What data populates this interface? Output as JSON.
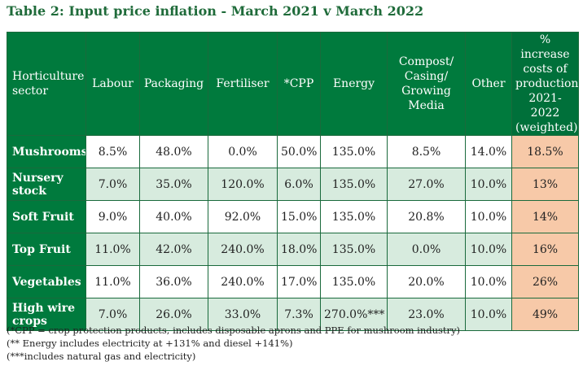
{
  "title": "Table 2: Input price inflation - March 2021 v March 2022",
  "columns": [
    {
      "label": "Horticulture sector"
    },
    {
      "label": "Labour"
    },
    {
      "label": "Packaging"
    },
    {
      "label": "Fertiliser"
    },
    {
      "label": "*CPP"
    },
    {
      "label": "Energy"
    },
    {
      "label": "Compost/ Casing/ Growing Media"
    },
    {
      "label": "Other"
    },
    {
      "label": "% increase costs of production 2021-2022 (weighted)"
    }
  ],
  "rows": [
    {
      "sector": "Mushrooms",
      "cells": [
        "8.5%",
        "48.0%",
        "0.0%",
        "50.0%",
        "135.0%",
        "8.5%",
        "14.0%",
        "18.5%"
      ]
    },
    {
      "sector": "Nursery stock",
      "cells": [
        "7.0%",
        "35.0%",
        "120.0%",
        "6.0%",
        "135.0%",
        "27.0%",
        "10.0%",
        "13%"
      ]
    },
    {
      "sector": "Soft Fruit",
      "cells": [
        "9.0%",
        "40.0%",
        "92.0%",
        "15.0%",
        "135.0%",
        "20.8%",
        "10.0%",
        "14%"
      ]
    },
    {
      "sector": "Top Fruit",
      "cells": [
        "11.0%",
        "42.0%",
        "240.0%",
        "18.0%",
        "135.0%",
        "0.0%",
        "10.0%",
        "16%"
      ]
    },
    {
      "sector": "Vegetables",
      "cells": [
        "11.0%",
        "36.0%",
        "240.0%",
        "17.0%",
        "135.0%",
        "20.0%",
        "10.0%",
        "26%"
      ]
    },
    {
      "sector": "High wire crops",
      "cells": [
        "7.0%",
        "26.0%",
        "33.0%",
        "7.3%",
        "270.0%***",
        "23.0%",
        "10.0%",
        "49%"
      ]
    }
  ],
  "footnotes": [
    "(*CPP = crop protection products, includes disposable aprons and PPE for mushroom industry)",
    "(** Energy includes electricity at +131% and diesel +141%)",
    "(***includes natural gas and electricity)"
  ],
  "colors": {
    "header_green": "#007a3d",
    "row_tint": "#d7ebde",
    "highlight": "#f7c9a8",
    "title": "#1f6b3a"
  }
}
